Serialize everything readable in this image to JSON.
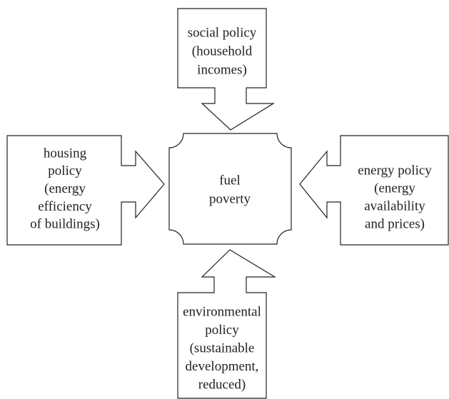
{
  "nodes": [
    {
      "id": "center",
      "lines": [
        "fuel",
        "poverty"
      ]
    },
    {
      "id": "top",
      "lines": [
        "social policy",
        "(household",
        "incomes)"
      ]
    },
    {
      "id": "left",
      "lines": [
        "housing",
        "policy",
        "(energy",
        "efficiency",
        "of buildings)"
      ]
    },
    {
      "id": "right",
      "lines": [
        "energy policy",
        "(energy",
        "availability",
        "and prices)"
      ]
    },
    {
      "id": "bottom",
      "lines": [
        "environmental",
        "policy",
        "(sustainable",
        "development,",
        "reduced)"
      ]
    }
  ]
}
